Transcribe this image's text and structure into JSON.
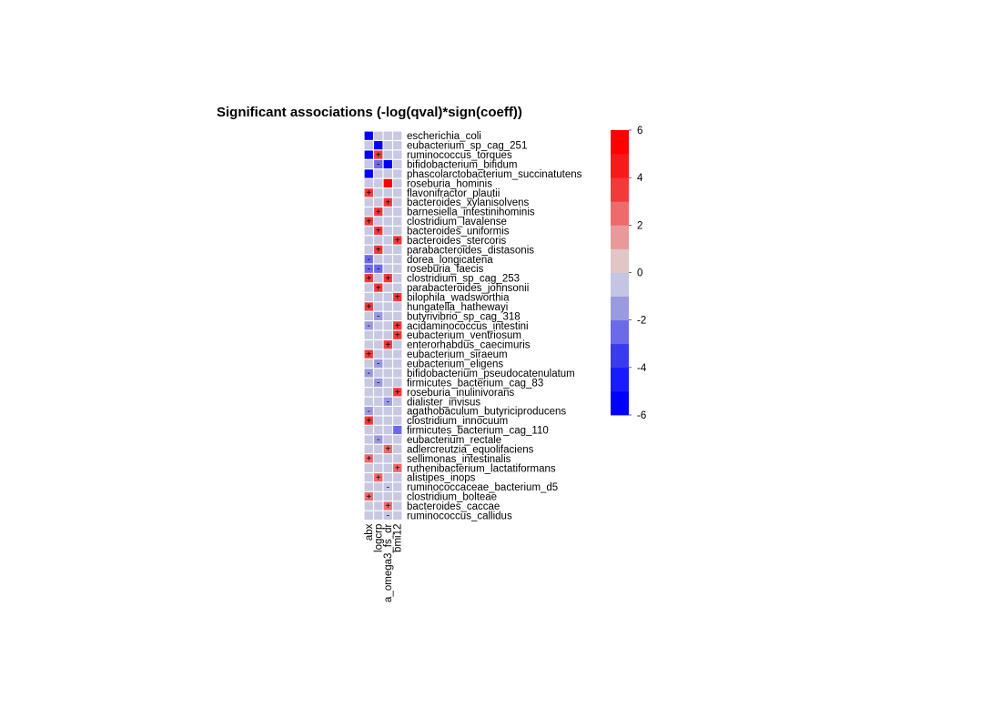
{
  "chart_data": {
    "type": "heatmap",
    "title": "Significant associations (-log(qval)*sign(coeff))",
    "columns": [
      "abx",
      "logcrp",
      "a_omega3_fs_dr",
      "bmi12"
    ],
    "rows": [
      "escherichia_coli",
      "eubacterium_sp_cag_251",
      "ruminococcus_torques",
      "bifidobacterium_bifidum",
      "phascolarctobacterium_succinatutens",
      "roseburia_hominis",
      "flavonifractor_plautii",
      "bacteroides_xylanisolvens",
      "barnesiella_intestinihominis",
      "clostridium_lavalense",
      "bacteroides_uniformis",
      "bacteroides_stercoris",
      "parabacteroides_distasonis",
      "dorea_longicatena",
      "roseburia_faecis",
      "clostridium_sp_cag_253",
      "parabacteroides_johnsonii",
      "bilophila_wadsworthia",
      "hungatella_hathewayi",
      "butyrivibrio_sp_cag_318",
      "acidaminococcus_intestini",
      "eubacterium_ventriosum",
      "enterorhabdus_caecimuris",
      "eubacterium_siraeum",
      "eubacterium_eligens",
      "bifidobacterium_pseudocatenulatum",
      "firmicutes_bacterium_cag_83",
      "roseburia_inulinivorans",
      "dialister_invisus",
      "agathobaculum_butyriciproducens",
      "clostridium_innocuum",
      "firmicutes_bacterium_cag_110",
      "eubacterium_rectale",
      "adlercreutzia_equolifaciens",
      "sellimonas_intestinalis",
      "ruthenibacterium_lactatiformans",
      "alistipes_inops",
      "ruminococcaceae_bacterium_d5",
      "clostridium_bolteae",
      "bacteroides_caccae",
      "ruminococcus_callidus"
    ],
    "values": [
      [
        -5.5,
        0,
        0,
        0
      ],
      [
        0,
        -5.5,
        0,
        0
      ],
      [
        -5.5,
        3.0,
        0,
        0
      ],
      [
        0,
        -2.5,
        -5.5,
        0
      ],
      [
        -5.5,
        0,
        0,
        0
      ],
      [
        0,
        0,
        5.0,
        0
      ],
      [
        3.5,
        0,
        0,
        0
      ],
      [
        0,
        0,
        3.5,
        0
      ],
      [
        0,
        3.5,
        0,
        0
      ],
      [
        3.5,
        0,
        0,
        0
      ],
      [
        0,
        3.0,
        0,
        0
      ],
      [
        0,
        0,
        0,
        3.0
      ],
      [
        0,
        3.0,
        0,
        0
      ],
      [
        -2.5,
        0,
        0,
        0
      ],
      [
        -2.5,
        -2.5,
        0,
        0
      ],
      [
        3.0,
        0,
        3.0,
        0
      ],
      [
        0,
        3.0,
        0,
        0
      ],
      [
        0,
        0,
        0,
        3.0
      ],
      [
        3.0,
        0,
        0,
        0
      ],
      [
        0,
        -2.0,
        0,
        0
      ],
      [
        -2.0,
        0,
        0,
        3.0
      ],
      [
        0,
        0,
        0,
        3.0
      ],
      [
        0,
        0,
        3.0,
        0
      ],
      [
        3.0,
        0,
        0,
        0
      ],
      [
        0,
        -2.0,
        0,
        0
      ],
      [
        -2.0,
        0,
        0,
        0
      ],
      [
        0,
        -2.0,
        0,
        0
      ],
      [
        0,
        0,
        0,
        3.0
      ],
      [
        0,
        0,
        -2.0,
        0
      ],
      [
        -2.0,
        0,
        0,
        0
      ],
      [
        3.0,
        0,
        0,
        0
      ],
      [
        0,
        0,
        0,
        -3.0
      ],
      [
        0,
        -2.0,
        0,
        0
      ],
      [
        0,
        0,
        2.5,
        0
      ],
      [
        2.5,
        0,
        0,
        0
      ],
      [
        0,
        0,
        0,
        2.5
      ],
      [
        0,
        2.5,
        0,
        0
      ],
      [
        0,
        0,
        -1.0,
        0
      ],
      [
        2.5,
        0,
        0,
        0
      ],
      [
        0,
        0,
        2.5,
        0
      ],
      [
        0,
        0,
        -1.0,
        0
      ]
    ],
    "signs": [
      [
        "",
        "",
        "",
        ""
      ],
      [
        "",
        "",
        "",
        ""
      ],
      [
        "",
        "+",
        "",
        ""
      ],
      [
        "",
        "-",
        "",
        ""
      ],
      [
        "",
        "",
        "",
        ""
      ],
      [
        "",
        "",
        "",
        ""
      ],
      [
        "+",
        "",
        "",
        ""
      ],
      [
        "",
        "",
        "+",
        ""
      ],
      [
        "",
        "+",
        "",
        ""
      ],
      [
        "+",
        "",
        "",
        ""
      ],
      [
        "",
        "+",
        "",
        ""
      ],
      [
        "",
        "",
        "",
        "+"
      ],
      [
        "",
        "+",
        "",
        ""
      ],
      [
        "-",
        "",
        "",
        ""
      ],
      [
        "-",
        "-",
        "",
        ""
      ],
      [
        "+",
        "",
        "+",
        ""
      ],
      [
        "",
        "+",
        "",
        ""
      ],
      [
        "",
        "",
        "",
        "+"
      ],
      [
        "+",
        "",
        "",
        ""
      ],
      [
        "",
        "-",
        "",
        ""
      ],
      [
        "-",
        "",
        "",
        "+"
      ],
      [
        "",
        "",
        "",
        "+"
      ],
      [
        "",
        "",
        "+",
        ""
      ],
      [
        "+",
        "",
        "",
        ""
      ],
      [
        "",
        "-",
        "",
        ""
      ],
      [
        "-",
        "",
        "",
        ""
      ],
      [
        "",
        "-",
        "",
        ""
      ],
      [
        "",
        "",
        "",
        "+"
      ],
      [
        "",
        "",
        "-",
        ""
      ],
      [
        "-",
        "",
        "",
        ""
      ],
      [
        "+",
        "",
        "",
        ""
      ],
      [
        "",
        "",
        "",
        ""
      ],
      [
        "",
        "-",
        "",
        ""
      ],
      [
        "",
        "",
        "+",
        ""
      ],
      [
        "+",
        "",
        "",
        ""
      ],
      [
        "",
        "",
        "",
        "+"
      ],
      [
        "",
        "+",
        "",
        ""
      ],
      [
        "",
        "",
        "-",
        ""
      ],
      [
        "+",
        "",
        "",
        ""
      ],
      [
        "",
        "",
        "+",
        ""
      ],
      [
        "",
        "",
        "-",
        ""
      ]
    ],
    "color_scale": {
      "range": [
        -6,
        6
      ],
      "ticks": [
        "6",
        "4",
        "2",
        "0",
        "-2",
        "-4",
        "-6"
      ],
      "colors": [
        "#0000ff",
        "#1a1aff",
        "#3a3aef",
        "#6b6be8",
        "#9a9ae0",
        "#c4c4e3",
        "#e0c6c6",
        "#e89a9a",
        "#ee6b6b",
        "#f23a3a",
        "#f81a1a",
        "#ff0000"
      ]
    },
    "legend_position": "right",
    "grid": true
  }
}
